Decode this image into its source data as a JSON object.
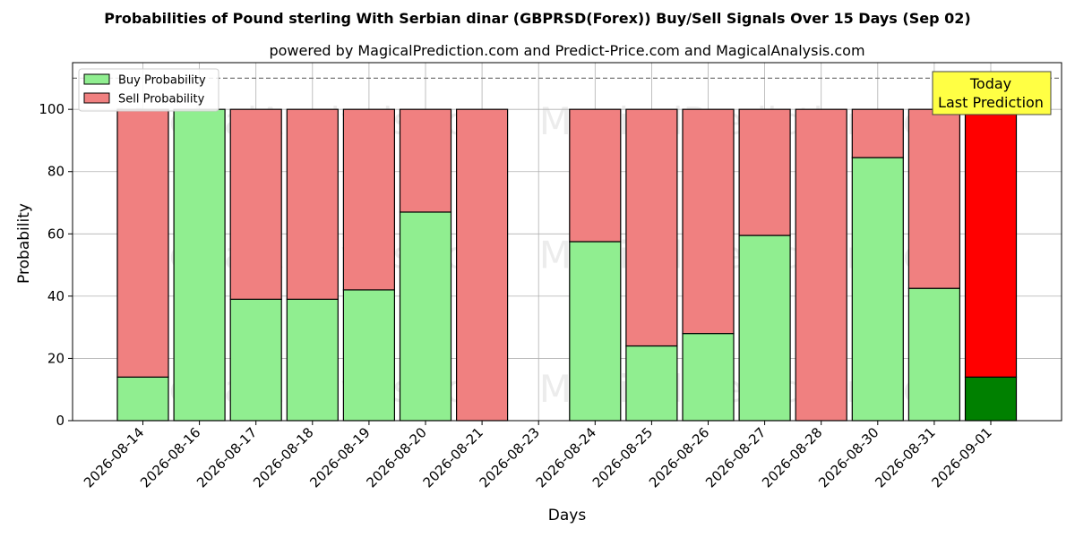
{
  "chart_data": {
    "type": "bar",
    "stacked": true,
    "title": "Probabilities of Pound sterling With Serbian dinar (GBPRSD(Forex)) Buy/Sell Signals Over 15 Days (Sep 02)",
    "subtitle": "powered by MagicalPrediction.com and Predict-Price.com and MagicalAnalysis.com",
    "xlabel": "Days",
    "ylabel": "Probability",
    "ylim": [
      0,
      115
    ],
    "yticks": [
      0,
      20,
      40,
      60,
      80,
      100
    ],
    "threshold_line": 110,
    "grid": true,
    "legend_position": "top-left",
    "categories": [
      "2026-08-14",
      "2026-08-16",
      "2026-08-17",
      "2026-08-18",
      "2026-08-19",
      "2026-08-20",
      "2026-08-21",
      "2026-08-23",
      "2026-08-24",
      "2026-08-25",
      "2026-08-26",
      "2026-08-27",
      "2026-08-28",
      "2026-08-30",
      "2026-08-31",
      "2026-09-01"
    ],
    "series": [
      {
        "name": "Buy Probability",
        "color": "#90ee90",
        "values": [
          14,
          100,
          39,
          39,
          42,
          67,
          0,
          null,
          57.5,
          24,
          28,
          59.5,
          0,
          84.5,
          42.5,
          14
        ]
      },
      {
        "name": "Sell Probability",
        "color": "#f08080",
        "values": [
          86,
          0,
          61,
          61,
          58,
          33,
          100,
          null,
          42.5,
          76,
          72,
          40.5,
          100,
          15.5,
          57.5,
          86
        ]
      }
    ],
    "highlight": {
      "index": 15,
      "buy_color": "#008000",
      "sell_color": "#ff0000"
    },
    "annotation": {
      "lines": [
        "Today",
        "Last Prediction"
      ],
      "position": "top-right"
    },
    "watermarks": [
      "MagicalAnalysis.com",
      "MagicalPrediction.com"
    ]
  }
}
